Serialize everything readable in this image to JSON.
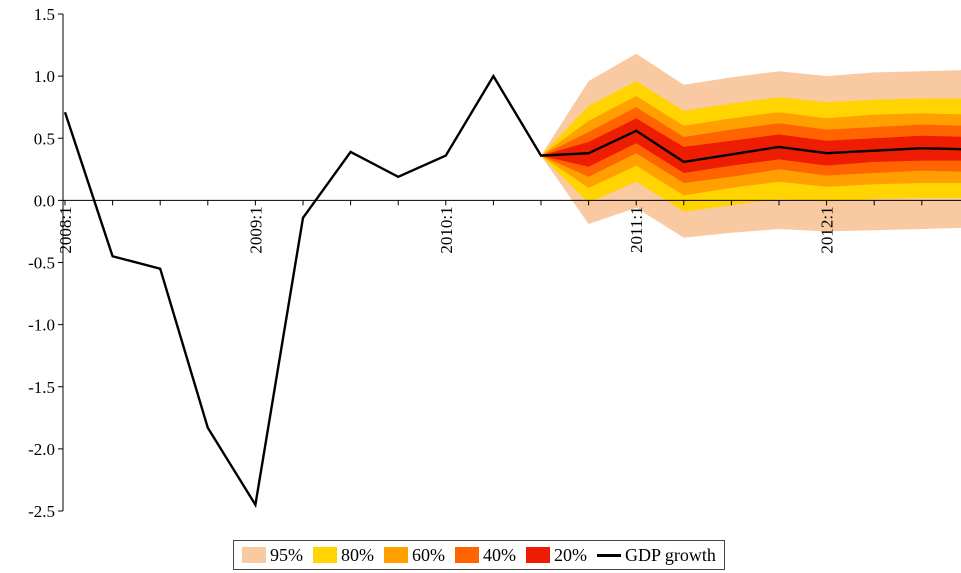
{
  "chart_data": {
    "type": "area",
    "title": "",
    "xlabel": "",
    "ylabel": "",
    "ylim": [
      -2.5,
      1.5
    ],
    "y_ticks": [
      "1.5",
      "1.0",
      "0.5",
      "0.0",
      "-0.5",
      "-1.0",
      "-1.5",
      "-2.0",
      "-2.5"
    ],
    "y_tick_values": [
      1.5,
      1.0,
      0.5,
      0.0,
      -0.5,
      -1.0,
      -1.5,
      -2.0,
      -2.5
    ],
    "x_tick_labels": [
      "2008:1",
      "2009:1",
      "2010:1",
      "2011:1",
      "2012:1"
    ],
    "x_tick_quarters": [
      "2008Q1",
      "2009Q1",
      "2010Q1",
      "2011Q1",
      "2012Q1"
    ],
    "x": [
      "2008Q1",
      "2008Q2",
      "2008Q3",
      "2008Q4",
      "2009Q1",
      "2009Q2",
      "2009Q3",
      "2009Q4",
      "2010Q1",
      "2010Q2",
      "2010Q3",
      "2010Q4",
      "2011Q1",
      "2011Q2",
      "2011Q3",
      "2011Q4",
      "2012Q1",
      "2012Q2",
      "2012Q3",
      "2012Q4"
    ],
    "series": [
      {
        "name": "GDP growth",
        "color": "#000000",
        "values": [
          0.71,
          -0.45,
          -0.55,
          -1.83,
          -2.45,
          -0.14,
          0.39,
          0.19,
          0.36,
          1.0,
          0.36,
          0.38,
          0.56,
          0.31,
          0.37,
          0.43,
          0.38,
          0.4,
          0.42,
          0.41
        ]
      }
    ],
    "fan": {
      "start_quarter": "2010Q3",
      "x": [
        "2010Q3",
        "2010Q4",
        "2011Q1",
        "2011Q2",
        "2011Q3",
        "2011Q4",
        "2012Q1",
        "2012Q2",
        "2012Q3",
        "2012Q4"
      ],
      "bands": [
        {
          "name": "95%",
          "color": "#f9c9a1",
          "lower": [
            0.36,
            -0.19,
            -0.06,
            -0.3,
            -0.26,
            -0.23,
            -0.25,
            -0.24,
            -0.23,
            -0.22
          ],
          "upper": [
            0.36,
            0.96,
            1.18,
            0.93,
            0.99,
            1.04,
            1.0,
            1.03,
            1.04,
            1.05
          ]
        },
        {
          "name": "80%",
          "color": "#ffd400",
          "lower": [
            0.36,
            -0.02,
            0.15,
            -0.09,
            -0.04,
            0.01,
            -0.01,
            0.01,
            0.02,
            0.02
          ],
          "upper": [
            0.36,
            0.76,
            0.96,
            0.72,
            0.78,
            0.83,
            0.79,
            0.81,
            0.82,
            0.82
          ]
        },
        {
          "name": "60%",
          "color": "#ff9f00",
          "lower": [
            0.36,
            0.1,
            0.28,
            0.04,
            0.1,
            0.15,
            0.11,
            0.13,
            0.14,
            0.14
          ],
          "upper": [
            0.36,
            0.64,
            0.84,
            0.6,
            0.66,
            0.71,
            0.66,
            0.69,
            0.7,
            0.69
          ]
        },
        {
          "name": "40%",
          "color": "#ff6400",
          "lower": [
            0.36,
            0.19,
            0.38,
            0.14,
            0.19,
            0.25,
            0.2,
            0.22,
            0.24,
            0.23
          ],
          "upper": [
            0.36,
            0.55,
            0.75,
            0.51,
            0.57,
            0.62,
            0.57,
            0.59,
            0.61,
            0.6
          ]
        },
        {
          "name": "20%",
          "color": "#ee1c00",
          "lower": [
            0.36,
            0.27,
            0.46,
            0.22,
            0.28,
            0.33,
            0.28,
            0.31,
            0.32,
            0.32
          ],
          "upper": [
            0.36,
            0.47,
            0.66,
            0.43,
            0.48,
            0.53,
            0.48,
            0.5,
            0.52,
            0.51
          ]
        }
      ]
    },
    "grid": false,
    "legend_placement": "bottom"
  },
  "legend": {
    "items": [
      {
        "label": "95%",
        "color": "#f9c9a1"
      },
      {
        "label": "80%",
        "color": "#ffd400"
      },
      {
        "label": "60%",
        "color": "#ff9f00"
      },
      {
        "label": "40%",
        "color": "#ff6400"
      },
      {
        "label": "20%",
        "color": "#ee1c00"
      }
    ],
    "line_label": "GDP growth"
  }
}
